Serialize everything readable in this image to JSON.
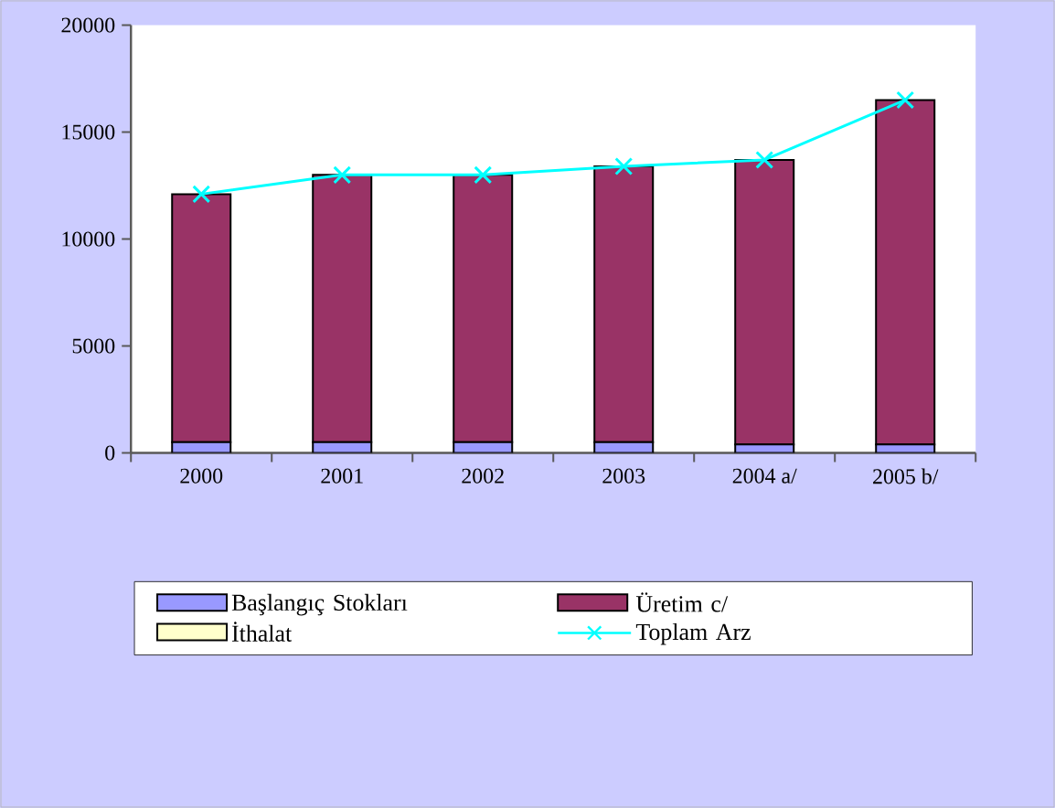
{
  "chart_data": {
    "type": "bar",
    "stacked": true,
    "categories": [
      "2000",
      "2001",
      "2002",
      "2003",
      "2004 a/",
      "2005 b/"
    ],
    "series": [
      {
        "name": "Başlangıç Stokları",
        "color": "#9999ff",
        "values": [
          500,
          500,
          500,
          500,
          400,
          400
        ]
      },
      {
        "name": "Üretim c/",
        "color": "#993366",
        "values": [
          11600,
          12500,
          12500,
          12900,
          13300,
          16100
        ]
      },
      {
        "name": "İthalat",
        "color": "#ffffcc",
        "values": [
          0,
          0,
          0,
          0,
          0,
          0
        ]
      },
      {
        "name": "Toplam Arz",
        "type": "line",
        "color": "#00ffff",
        "marker": "cross",
        "values": [
          12100,
          13000,
          13000,
          13400,
          13700,
          16500
        ]
      }
    ],
    "ylim": [
      0,
      20000
    ],
    "yticks": [
      0,
      5000,
      10000,
      15000,
      20000
    ],
    "legend": "bottom"
  }
}
